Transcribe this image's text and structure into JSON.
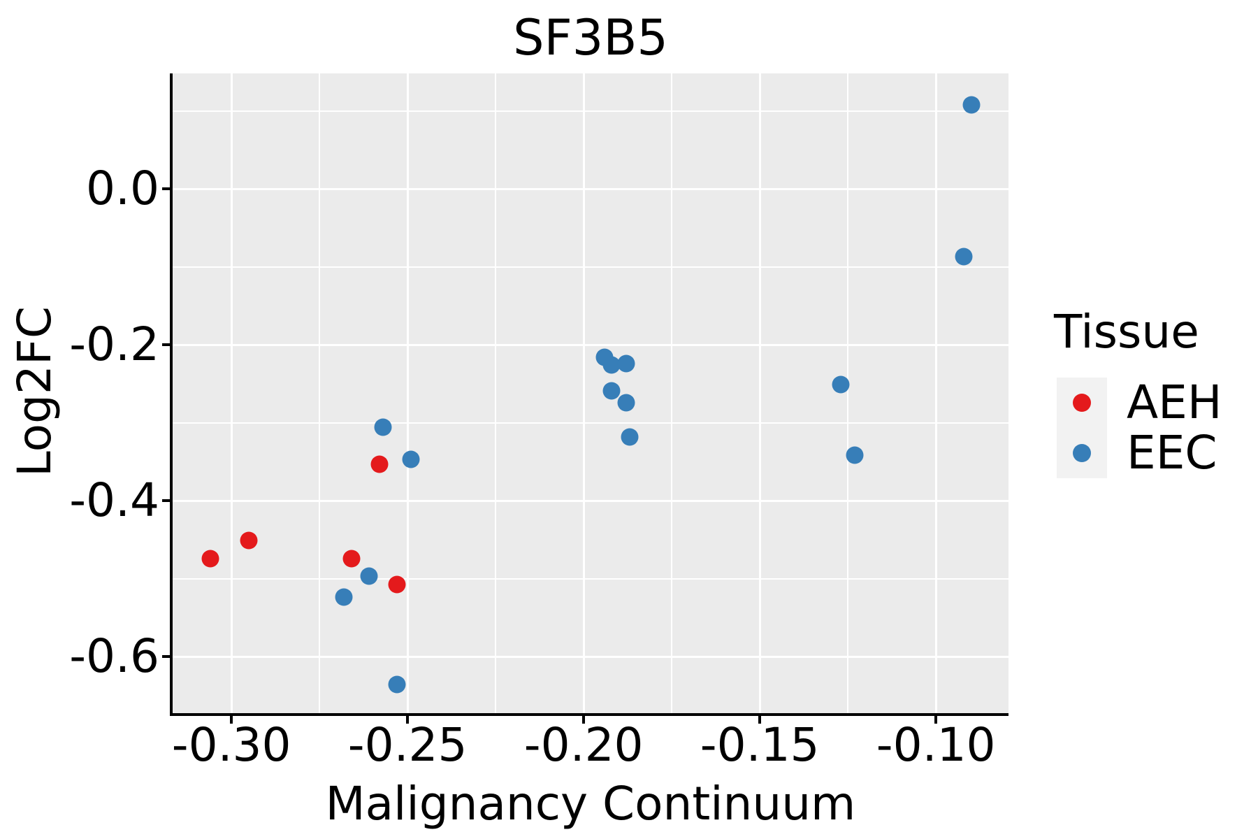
{
  "title": "SF3B5",
  "axes": {
    "x": {
      "label": "Malignancy Continuum",
      "ticks": [
        -0.3,
        -0.25,
        -0.2,
        -0.15,
        -0.1
      ],
      "tick_labels": [
        "-0.30",
        "-0.25",
        "-0.20",
        "-0.15",
        "-0.10"
      ],
      "minor_ticks": [
        -0.275,
        -0.225,
        -0.175,
        -0.125
      ]
    },
    "y": {
      "label": "Log2FC",
      "ticks": [
        0.0,
        -0.2,
        -0.4,
        -0.6
      ],
      "tick_labels": [
        "0.0",
        "-0.2",
        "-0.4",
        "-0.6"
      ],
      "minor_ticks": [
        0.1,
        -0.1,
        -0.3,
        -0.5
      ]
    }
  },
  "legend": {
    "title": "Tissue",
    "entries": [
      {
        "label": "AEH",
        "color": "#e41a1c"
      },
      {
        "label": "EEC",
        "color": "#377eb8"
      }
    ]
  },
  "colors": {
    "panel_background": "#ebebeb",
    "gridline": "#ffffff",
    "axis": "#000000",
    "legend_key_background": "#f2f2f2",
    "aeh_red": "#e41a1c",
    "eec_blue": "#377eb8"
  },
  "chart_data": {
    "type": "scatter",
    "title": "SF3B5",
    "xlabel": "Malignancy Continuum",
    "ylabel": "Log2FC",
    "xlim": [
      -0.3167,
      -0.0794
    ],
    "ylim": [
      -0.6726,
      0.148
    ],
    "grid": "on",
    "legend_title": "Tissue",
    "legend_position": "right",
    "series": [
      {
        "name": "AEH",
        "color": "#e41a1c",
        "points": [
          [
            -0.306,
            -0.474
          ],
          [
            -0.295,
            -0.451
          ],
          [
            -0.266,
            -0.474
          ],
          [
            -0.258,
            -0.353
          ],
          [
            -0.253,
            -0.508
          ]
        ]
      },
      {
        "name": "EEC",
        "color": "#377eb8",
        "points": [
          [
            -0.268,
            -0.524
          ],
          [
            -0.261,
            -0.497
          ],
          [
            -0.257,
            -0.306
          ],
          [
            -0.253,
            -0.636
          ],
          [
            -0.249,
            -0.347
          ],
          [
            -0.194,
            -0.216
          ],
          [
            -0.192,
            -0.226
          ],
          [
            -0.188,
            -0.224
          ],
          [
            -0.192,
            -0.259
          ],
          [
            -0.188,
            -0.274
          ],
          [
            -0.187,
            -0.318
          ],
          [
            -0.127,
            -0.251
          ],
          [
            -0.123,
            -0.342
          ],
          [
            -0.092,
            -0.087
          ],
          [
            -0.09,
            0.108
          ]
        ]
      }
    ]
  }
}
